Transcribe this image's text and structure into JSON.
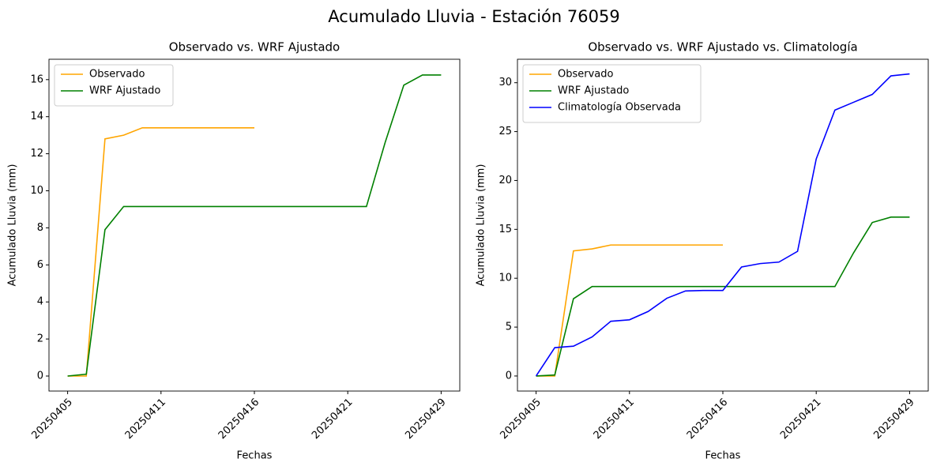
{
  "title": "Acumulado Lluvia - Estación 76059",
  "chart_data": [
    {
      "type": "line",
      "title": "Observado vs. WRF Ajustado",
      "x_label": "Fechas",
      "y_label": "Acumulado Lluvia (mm)",
      "categories": [
        "20250405",
        null,
        null,
        null,
        null,
        "20250411",
        null,
        null,
        null,
        null,
        "20250416",
        null,
        null,
        null,
        null,
        "20250421",
        null,
        null,
        null,
        null,
        "20250429"
      ],
      "series": [
        {
          "name": "Observado",
          "color": "orange",
          "values": [
            0,
            0,
            12.8,
            13.0,
            13.4,
            13.4,
            13.4,
            13.4,
            13.4,
            13.4,
            13.4,
            null,
            null,
            null,
            null,
            null,
            null,
            null,
            null,
            null,
            null
          ]
        },
        {
          "name": "WRF Ajustado",
          "color": "green",
          "values": [
            0,
            0.1,
            7.9,
            9.15,
            9.15,
            9.15,
            9.15,
            9.15,
            9.15,
            9.15,
            9.15,
            9.15,
            9.15,
            9.15,
            9.15,
            9.15,
            9.15,
            12.6,
            15.7,
            16.25,
            16.25
          ]
        }
      ],
      "ylim": [
        -0.81,
        17.1
      ],
      "yticks": [
        0,
        2,
        4,
        6,
        8,
        10,
        12,
        14,
        16
      ],
      "legend": "upper left"
    },
    {
      "type": "line",
      "title": "Observado vs. WRF Ajustado vs. Climatología",
      "x_label": "Fechas",
      "y_label": "Acumulado Lluvia (mm)",
      "categories": [
        "20250405",
        null,
        null,
        null,
        null,
        "20250411",
        null,
        null,
        null,
        null,
        "20250416",
        null,
        null,
        null,
        null,
        "20250421",
        null,
        null,
        null,
        null,
        "20250429"
      ],
      "series": [
        {
          "name": "Observado",
          "color": "orange",
          "values": [
            0,
            0,
            12.8,
            13.0,
            13.4,
            13.4,
            13.4,
            13.4,
            13.4,
            13.4,
            13.4,
            null,
            null,
            null,
            null,
            null,
            null,
            null,
            null,
            null,
            null
          ]
        },
        {
          "name": "WRF Ajustado",
          "color": "green",
          "values": [
            0,
            0.1,
            7.9,
            9.15,
            9.15,
            9.15,
            9.15,
            9.15,
            9.15,
            9.15,
            9.15,
            9.15,
            9.15,
            9.15,
            9.15,
            9.15,
            9.15,
            12.6,
            15.7,
            16.25,
            16.25
          ]
        },
        {
          "name": "Climatología Observada",
          "color": "blue",
          "values": [
            0,
            2.9,
            3.05,
            4.0,
            5.6,
            5.75,
            6.6,
            7.95,
            8.7,
            8.75,
            8.75,
            11.15,
            11.5,
            11.65,
            12.75,
            22.2,
            27.2,
            28.0,
            28.8,
            30.7,
            30.9
          ]
        }
      ],
      "ylim": [
        -1.54,
        32.4
      ],
      "yticks": [
        0,
        5,
        10,
        15,
        20,
        25,
        30
      ],
      "legend": "upper left"
    }
  ]
}
